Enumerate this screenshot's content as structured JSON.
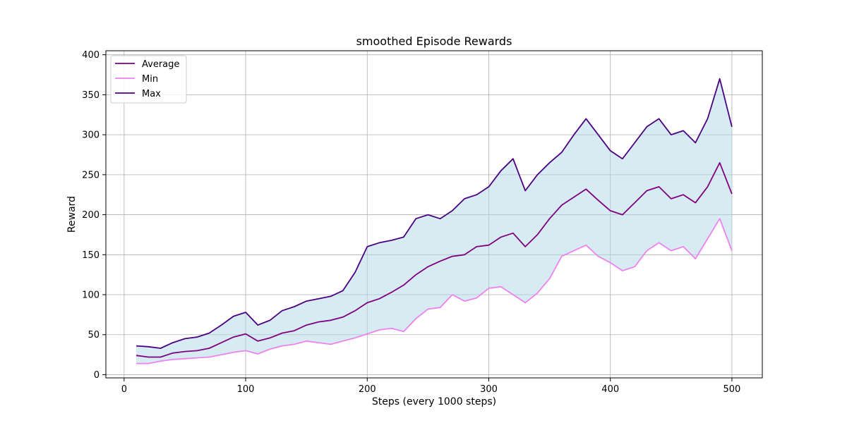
{
  "chart_data": {
    "type": "line",
    "title": "smoothed Episode Rewards",
    "xlabel": "Steps (every 1000 steps)",
    "ylabel": "Reward",
    "xlim": [
      -15,
      525
    ],
    "ylim": [
      -4,
      405
    ],
    "xticks": [
      0,
      100,
      200,
      300,
      400,
      500
    ],
    "yticks": [
      0,
      50,
      100,
      150,
      200,
      250,
      300,
      350,
      400
    ],
    "grid": true,
    "legend_position": "top-left",
    "band_color": "#add8e6",
    "x": [
      10,
      20,
      30,
      40,
      50,
      60,
      70,
      80,
      90,
      100,
      110,
      120,
      130,
      140,
      150,
      160,
      170,
      180,
      190,
      200,
      210,
      220,
      230,
      240,
      250,
      260,
      270,
      280,
      290,
      300,
      310,
      320,
      330,
      340,
      350,
      360,
      370,
      380,
      390,
      400,
      410,
      420,
      430,
      440,
      450,
      460,
      470,
      480,
      490,
      500
    ],
    "series": [
      {
        "name": "Average",
        "color": "#800080",
        "values": [
          24,
          22,
          22,
          27,
          29,
          30,
          33,
          40,
          47,
          51,
          42,
          46,
          52,
          55,
          62,
          66,
          68,
          72,
          80,
          90,
          95,
          103,
          112,
          125,
          135,
          142,
          148,
          150,
          160,
          162,
          172,
          177,
          160,
          175,
          195,
          212,
          222,
          232,
          218,
          205,
          200,
          215,
          230,
          235,
          220,
          225,
          215,
          235,
          265,
          226
        ]
      },
      {
        "name": "Min",
        "color": "#ee82ee",
        "values": [
          14,
          14,
          17,
          19,
          20,
          21,
          22,
          25,
          28,
          30,
          26,
          32,
          36,
          38,
          42,
          40,
          38,
          42,
          46,
          51,
          56,
          58,
          54,
          70,
          82,
          84,
          100,
          92,
          96,
          108,
          110,
          100,
          90,
          102,
          120,
          148,
          155,
          162,
          148,
          140,
          130,
          135,
          155,
          165,
          155,
          160,
          145,
          170,
          195,
          155
        ]
      },
      {
        "name": "Max",
        "color": "#4b0082",
        "values": [
          36,
          35,
          33,
          40,
          45,
          47,
          52,
          62,
          73,
          78,
          62,
          68,
          80,
          85,
          92,
          95,
          98,
          105,
          128,
          160,
          165,
          168,
          172,
          195,
          200,
          195,
          205,
          220,
          225,
          235,
          255,
          270,
          230,
          250,
          265,
          278,
          300,
          320,
          300,
          280,
          270,
          290,
          310,
          320,
          300,
          305,
          290,
          320,
          370,
          310
        ]
      }
    ]
  }
}
